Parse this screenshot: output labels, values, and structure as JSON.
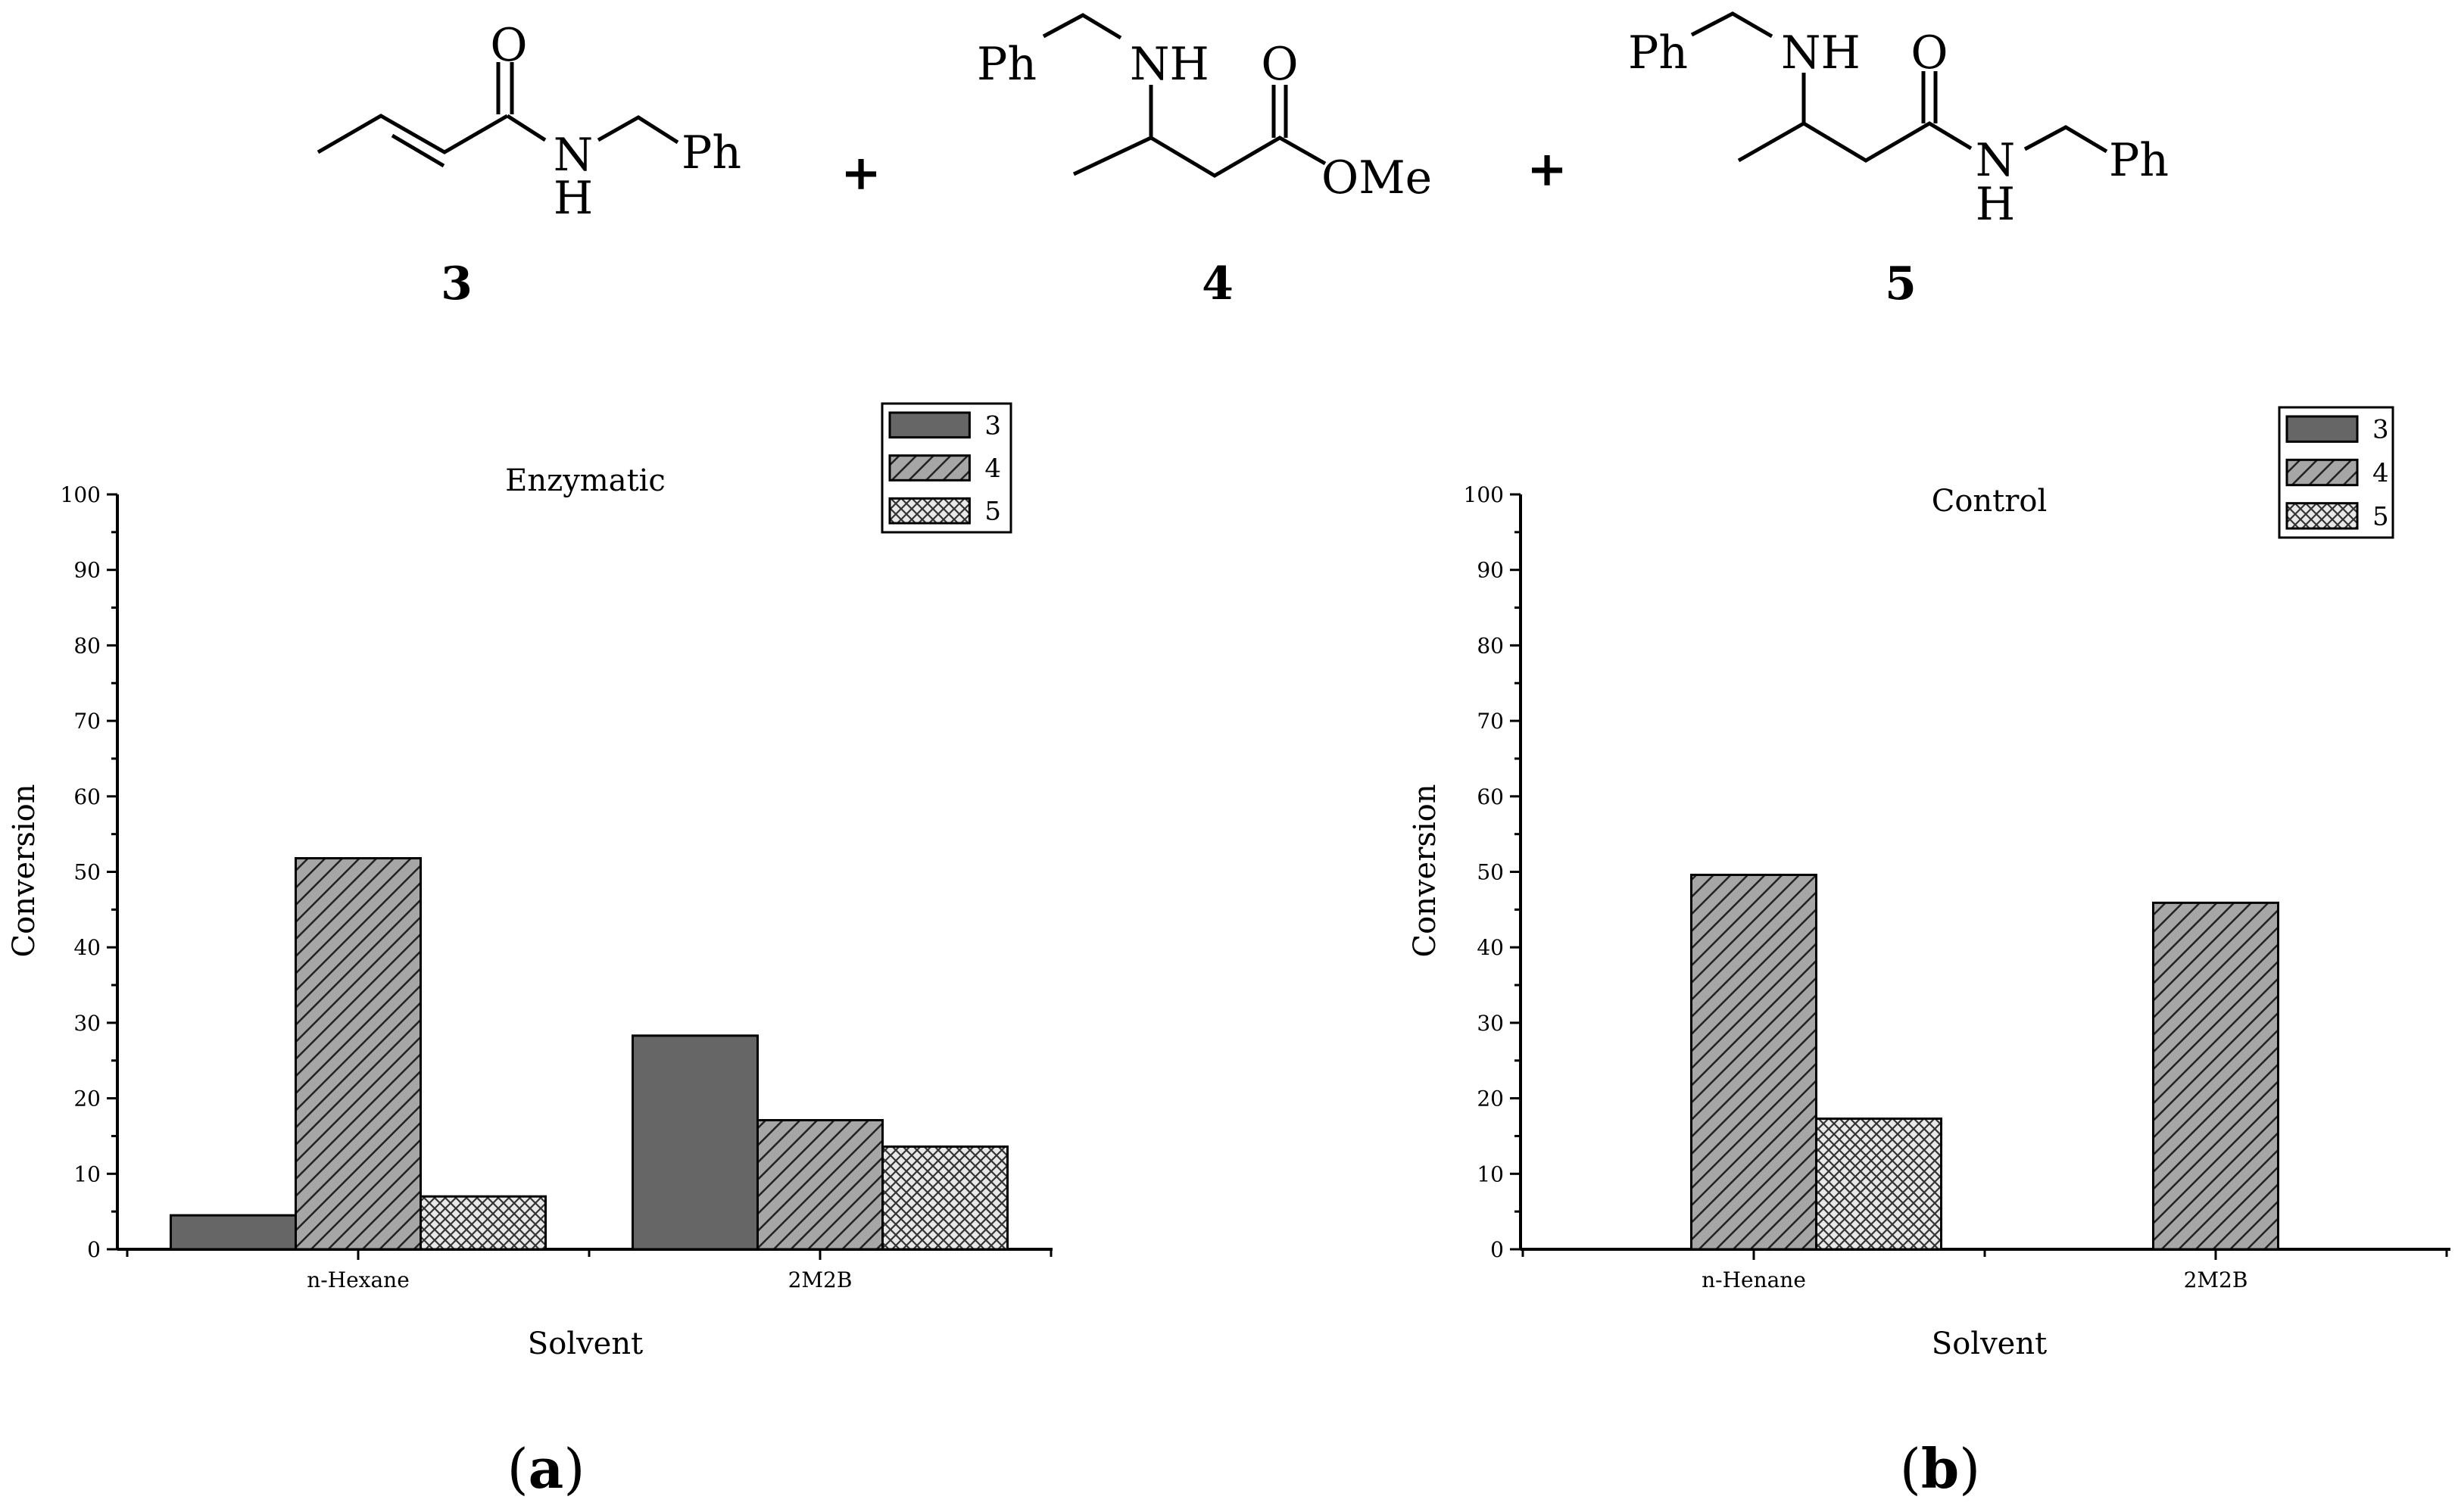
{
  "scheme": {
    "compounds": [
      {
        "number": "3",
        "labels": {
          "o": "O",
          "n": "N",
          "h": "H",
          "ph": "Ph"
        }
      },
      {
        "number": "4",
        "labels": {
          "ph": "Ph",
          "nh": "NH",
          "o": "O",
          "ome": "OMe"
        }
      },
      {
        "number": "5",
        "labels": {
          "ph": "Ph",
          "nh": "NH",
          "o": "O",
          "n": "N",
          "h": "H",
          "ph2": "Ph"
        }
      }
    ],
    "plus1": "+",
    "plus2": "+"
  },
  "chart_data": [
    {
      "type": "bar",
      "panel": "a",
      "title": "Enzymatic",
      "xlabel": "Solvent",
      "ylabel": "Conversion",
      "ylim": [
        0,
        100
      ],
      "yticks": [
        "0",
        "10",
        "20",
        "30",
        "40",
        "50",
        "60",
        "70",
        "80",
        "90",
        "100"
      ],
      "categories": [
        "n-Hexane",
        "2M2B"
      ],
      "legend_position": "top-right",
      "series": [
        {
          "name": "3",
          "pattern": "solid",
          "color": "#666666",
          "values": [
            4.5,
            28.3
          ]
        },
        {
          "name": "4",
          "pattern": "diagonal",
          "color": "#8c8c8c",
          "values": [
            51.8,
            17.1
          ]
        },
        {
          "name": "5",
          "pattern": "crosshatch",
          "color": "#d9d9d9",
          "values": [
            7.0,
            13.6
          ]
        }
      ]
    },
    {
      "type": "bar",
      "panel": "b",
      "title": "Control",
      "xlabel": "Solvent",
      "ylabel": "Conversion",
      "ylim": [
        0,
        100
      ],
      "yticks": [
        "0",
        "10",
        "20",
        "30",
        "40",
        "50",
        "60",
        "70",
        "80",
        "90",
        "100"
      ],
      "categories": [
        "n-Henane",
        "2M2B"
      ],
      "legend_position": "top-right",
      "series": [
        {
          "name": "3",
          "pattern": "solid",
          "color": "#666666",
          "values": [
            0,
            0
          ]
        },
        {
          "name": "4",
          "pattern": "diagonal",
          "color": "#8c8c8c",
          "values": [
            49.6,
            45.9
          ]
        },
        {
          "name": "5",
          "pattern": "crosshatch",
          "color": "#d9d9d9",
          "values": [
            17.3,
            0
          ]
        }
      ]
    }
  ]
}
